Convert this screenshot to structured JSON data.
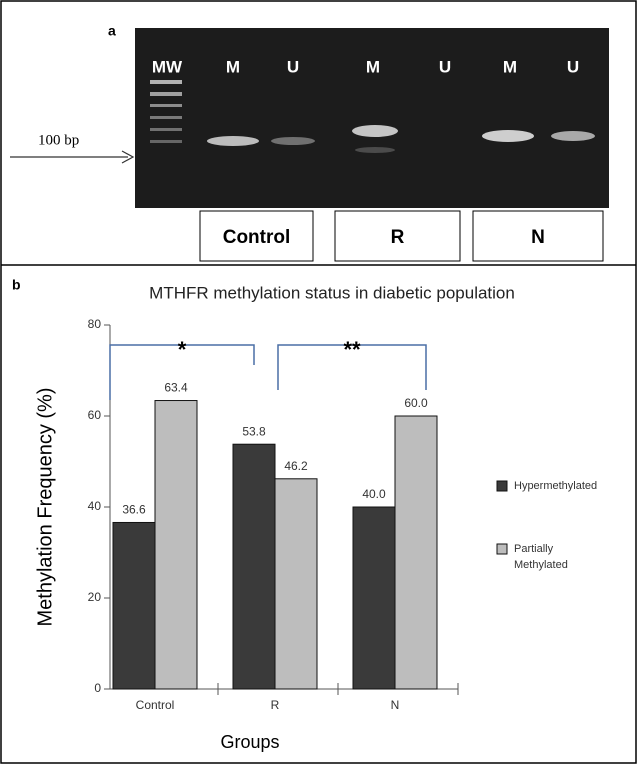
{
  "panel_labels": [
    "a",
    "b"
  ],
  "panel_a": {
    "lanes": [
      "MW",
      "M",
      "U",
      "M",
      "U",
      "M",
      "U"
    ],
    "marker": "100 bp",
    "groups": [
      "Control",
      "R",
      "N"
    ]
  },
  "chart_data": {
    "type": "bar",
    "title": "MTHFR methylation status in diabetic population",
    "x_label": "Groups",
    "y_label": "Methylation Frequency (%)",
    "categories": [
      "Control",
      "R",
      "N"
    ],
    "series": [
      {
        "name": "Hypermethylated",
        "color": "#3a3a3a",
        "values": [
          36.6,
          53.8,
          40.0
        ],
        "value_labels": [
          "36.6",
          "53.8",
          "40.0"
        ]
      },
      {
        "name": "Partially Methylated",
        "color": "#bdbdbd",
        "values": [
          63.4,
          46.2,
          60.0
        ],
        "value_labels": [
          "63.4",
          "46.2",
          "60.0"
        ]
      }
    ],
    "annotations": [
      "*",
      "**"
    ],
    "ylim": [
      0,
      80
    ],
    "yticks": [
      0,
      20,
      40,
      60,
      80
    ],
    "grid": false,
    "legend": "right"
  }
}
